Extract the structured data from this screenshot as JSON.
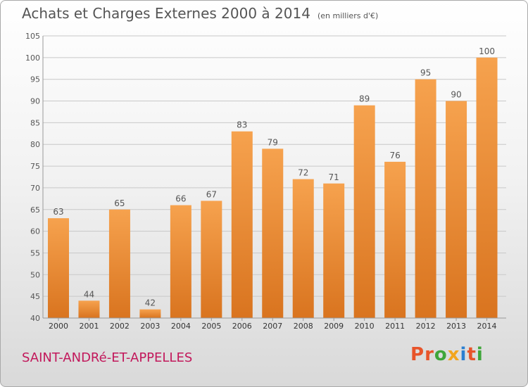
{
  "header": {
    "title": "Achats et Charges Externes 2000 à 2014",
    "unit": "(en milliers d'€)"
  },
  "footer": {
    "city": "SAINT-ANDRé-ET-APPELLES",
    "logo_letters": [
      "P",
      "r",
      "o",
      "x",
      "i",
      "t",
      "i"
    ]
  },
  "colors": {
    "bar_top": "#f6a24e",
    "bar_bottom": "#d9741f",
    "grid": "#c8c8c8",
    "text": "#555555",
    "city": "#c2185b",
    "logo": [
      "#e8542a",
      "#e8542a",
      "#3fa63a",
      "#f2a51f",
      "#2b7fd1",
      "#e8542a",
      "#3fa63a"
    ]
  },
  "chart_data": {
    "type": "bar",
    "title": "Achats et Charges Externes 2000 à 2014",
    "subtitle": "(en milliers d'€)",
    "xlabel": "",
    "ylabel": "",
    "categories": [
      "2000",
      "2001",
      "2002",
      "2003",
      "2004",
      "2005",
      "2006",
      "2007",
      "2008",
      "2009",
      "2010",
      "2011",
      "2012",
      "2013",
      "2014"
    ],
    "values": [
      63,
      44,
      65,
      42,
      66,
      67,
      83,
      79,
      72,
      71,
      89,
      76,
      95,
      90,
      100
    ],
    "ylim": [
      40,
      105
    ],
    "yticks": [
      40,
      45,
      50,
      55,
      60,
      65,
      70,
      75,
      80,
      85,
      90,
      95,
      100,
      105
    ],
    "grid": true,
    "legend": "none"
  }
}
